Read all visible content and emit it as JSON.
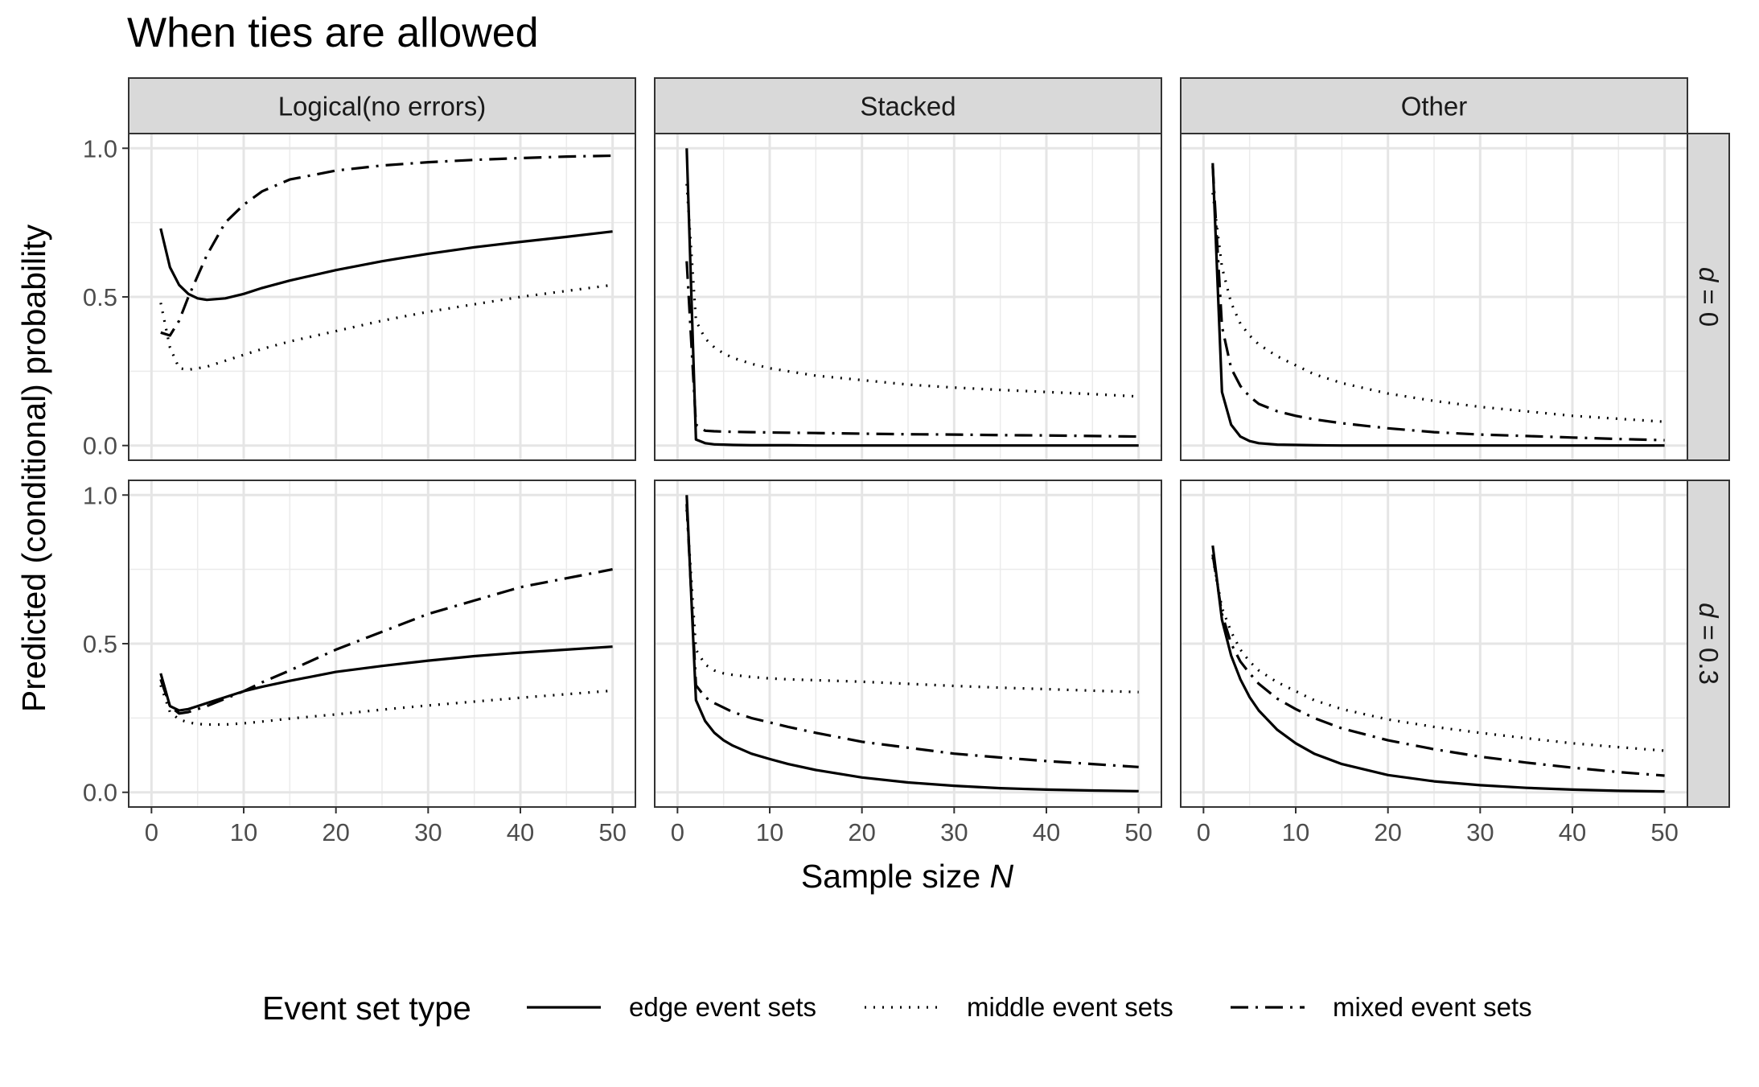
{
  "chart_data": {
    "type": "line",
    "title": "When ties are allowed",
    "xlabel": "Sample size N",
    "ylabel": "Predicted (conditional) probability",
    "xlim": [
      0,
      50
    ],
    "ylim": [
      0,
      1
    ],
    "x_ticks": [
      0,
      10,
      20,
      30,
      40,
      50
    ],
    "y_ticks": [
      0.0,
      0.5,
      1.0
    ],
    "y_tick_labels": [
      "0.0",
      "0.5",
      "1.0"
    ],
    "grid": true,
    "legend": {
      "title": "Event set type",
      "position": "bottom",
      "entries": [
        {
          "name": "edge event sets",
          "linestyle": "solid"
        },
        {
          "name": "middle event sets",
          "linestyle": "dotted"
        },
        {
          "name": "mixed event sets",
          "linestyle": "dashdot"
        }
      ]
    },
    "columns": [
      "Logical(no errors)",
      "Stacked",
      "Other"
    ],
    "rows": [
      "d = 0",
      "d = 0.3"
    ],
    "x": [
      1,
      2,
      3,
      4,
      5,
      6,
      8,
      10,
      12,
      15,
      20,
      25,
      30,
      35,
      40,
      45,
      50
    ],
    "panels": [
      {
        "column": "Logical(no errors)",
        "row": "d = 0",
        "series": [
          {
            "name": "edge event sets",
            "values": [
              0.73,
              0.6,
              0.54,
              0.51,
              0.495,
              0.49,
              0.495,
              0.51,
              0.53,
              0.555,
              0.59,
              0.62,
              0.645,
              0.667,
              0.685,
              0.702,
              0.72
            ]
          },
          {
            "name": "middle event sets",
            "values": [
              0.48,
              0.33,
              0.26,
              0.255,
              0.26,
              0.265,
              0.285,
              0.305,
              0.325,
              0.35,
              0.385,
              0.42,
              0.45,
              0.475,
              0.5,
              0.52,
              0.54
            ]
          },
          {
            "name": "mixed event sets",
            "values": [
              0.38,
              0.37,
              0.42,
              0.5,
              0.57,
              0.64,
              0.75,
              0.81,
              0.855,
              0.895,
              0.925,
              0.942,
              0.953,
              0.961,
              0.967,
              0.972,
              0.975
            ]
          }
        ]
      },
      {
        "column": "Stacked",
        "row": "d = 0",
        "series": [
          {
            "name": "edge event sets",
            "values": [
              1.0,
              0.02,
              0.008,
              0.004,
              0.003,
              0.002,
              0.001,
              0.001,
              0.001,
              0.0,
              0.0,
              0.0,
              0.0,
              0.0,
              0.0,
              0.0,
              0.0
            ]
          },
          {
            "name": "middle event sets",
            "values": [
              0.88,
              0.42,
              0.36,
              0.33,
              0.31,
              0.295,
              0.275,
              0.26,
              0.25,
              0.235,
              0.22,
              0.205,
              0.195,
              0.187,
              0.18,
              0.173,
              0.165
            ]
          },
          {
            "name": "mixed event sets",
            "values": [
              0.62,
              0.07,
              0.05,
              0.048,
              0.047,
              0.046,
              0.045,
              0.044,
              0.043,
              0.042,
              0.04,
              0.038,
              0.037,
              0.035,
              0.034,
              0.032,
              0.03
            ]
          }
        ]
      },
      {
        "column": "Other",
        "row": "d = 0",
        "series": [
          {
            "name": "edge event sets",
            "values": [
              0.95,
              0.18,
              0.07,
              0.03,
              0.015,
              0.008,
              0.003,
              0.002,
              0.001,
              0.0,
              0.0,
              0.0,
              0.0,
              0.0,
              0.0,
              0.0,
              0.0
            ]
          },
          {
            "name": "middle event sets",
            "values": [
              0.85,
              0.6,
              0.48,
              0.41,
              0.37,
              0.34,
              0.3,
              0.27,
              0.24,
              0.21,
              0.175,
              0.15,
              0.13,
              0.115,
              0.1,
              0.09,
              0.08
            ]
          },
          {
            "name": "mixed event sets",
            "values": [
              0.94,
              0.4,
              0.26,
              0.2,
              0.165,
              0.14,
              0.115,
              0.1,
              0.088,
              0.075,
              0.058,
              0.045,
              0.037,
              0.032,
              0.027,
              0.022,
              0.018
            ]
          }
        ]
      },
      {
        "column": "Logical(no errors)",
        "row": "d = 0.3",
        "series": [
          {
            "name": "edge event sets",
            "values": [
              0.4,
              0.29,
              0.275,
              0.28,
              0.29,
              0.3,
              0.32,
              0.34,
              0.355,
              0.375,
              0.405,
              0.425,
              0.443,
              0.458,
              0.47,
              0.48,
              0.49
            ]
          },
          {
            "name": "middle event sets",
            "values": [
              0.36,
              0.27,
              0.245,
              0.235,
              0.23,
              0.228,
              0.228,
              0.232,
              0.238,
              0.248,
              0.262,
              0.278,
              0.292,
              0.305,
              0.318,
              0.33,
              0.342
            ]
          },
          {
            "name": "mixed event sets",
            "values": [
              0.38,
              0.29,
              0.265,
              0.27,
              0.28,
              0.29,
              0.315,
              0.34,
              0.37,
              0.41,
              0.48,
              0.54,
              0.6,
              0.645,
              0.69,
              0.72,
              0.75
            ]
          }
        ]
      },
      {
        "column": "Stacked",
        "row": "d = 0.3",
        "series": [
          {
            "name": "edge event sets",
            "values": [
              1.0,
              0.31,
              0.24,
              0.2,
              0.175,
              0.157,
              0.13,
              0.112,
              0.095,
              0.075,
              0.05,
              0.033,
              0.022,
              0.014,
              0.009,
              0.006,
              0.004
            ]
          },
          {
            "name": "middle event sets",
            "values": [
              0.95,
              0.48,
              0.43,
              0.41,
              0.4,
              0.395,
              0.388,
              0.383,
              0.38,
              0.377,
              0.372,
              0.365,
              0.358,
              0.352,
              0.347,
              0.342,
              0.337
            ]
          },
          {
            "name": "mixed event sets",
            "values": [
              0.97,
              0.36,
              0.32,
              0.3,
              0.285,
              0.27,
              0.25,
              0.235,
              0.22,
              0.2,
              0.17,
              0.15,
              0.13,
              0.117,
              0.105,
              0.095,
              0.085
            ]
          }
        ]
      },
      {
        "column": "Other",
        "row": "d = 0.3",
        "series": [
          {
            "name": "edge event sets",
            "values": [
              0.83,
              0.58,
              0.46,
              0.38,
              0.32,
              0.275,
              0.21,
              0.165,
              0.13,
              0.095,
              0.058,
              0.037,
              0.024,
              0.015,
              0.009,
              0.005,
              0.003
            ]
          },
          {
            "name": "middle event sets",
            "values": [
              0.79,
              0.62,
              0.54,
              0.48,
              0.44,
              0.41,
              0.37,
              0.34,
              0.31,
              0.28,
              0.245,
              0.22,
              0.2,
              0.182,
              0.165,
              0.152,
              0.14
            ]
          },
          {
            "name": "mixed event sets",
            "values": [
              0.8,
              0.6,
              0.5,
              0.44,
              0.4,
              0.365,
              0.315,
              0.28,
              0.25,
              0.215,
              0.175,
              0.145,
              0.12,
              0.1,
              0.083,
              0.068,
              0.056
            ]
          }
        ]
      }
    ]
  }
}
